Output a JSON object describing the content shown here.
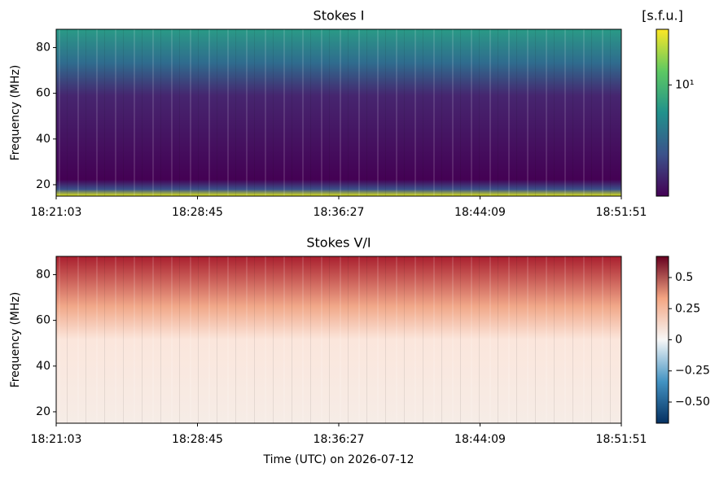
{
  "chart_data": [
    {
      "type": "spectrogram",
      "title": "Stokes I",
      "ylabel": "Frequency (MHz)",
      "xlim": [
        "18:21:03",
        "18:51:51"
      ],
      "xticks": [
        "18:21:03",
        "18:28:45",
        "18:36:27",
        "18:44:09",
        "18:51:51"
      ],
      "ylim": [
        15,
        88
      ],
      "yticks": [
        20,
        40,
        60,
        80
      ],
      "colorbar": {
        "label": "[s.f.u.]",
        "scale": "log",
        "colormap": "viridis",
        "lim": [
          1.6,
          25
        ],
        "ticks": [
          {
            "value": 10,
            "label": "10¹"
          }
        ]
      }
    },
    {
      "type": "spectrogram",
      "title": "Stokes V/I",
      "ylabel": "Frequency (MHz)",
      "xlabel": "Time (UTC) on 2026-07-12",
      "xlim": [
        "18:21:03",
        "18:51:51"
      ],
      "xticks": [
        "18:21:03",
        "18:28:45",
        "18:36:27",
        "18:44:09",
        "18:51:51"
      ],
      "ylim": [
        15,
        88
      ],
      "yticks": [
        20,
        40,
        60,
        80
      ],
      "colorbar": {
        "label": null,
        "scale": "linear",
        "colormap": "RdBu_r",
        "lim": [
          -0.67,
          0.67
        ],
        "ticks": [
          {
            "value": -0.5,
            "label": "−0.50"
          },
          {
            "value": -0.25,
            "label": "−0.25"
          },
          0,
          0.25,
          0.5
        ]
      }
    }
  ]
}
